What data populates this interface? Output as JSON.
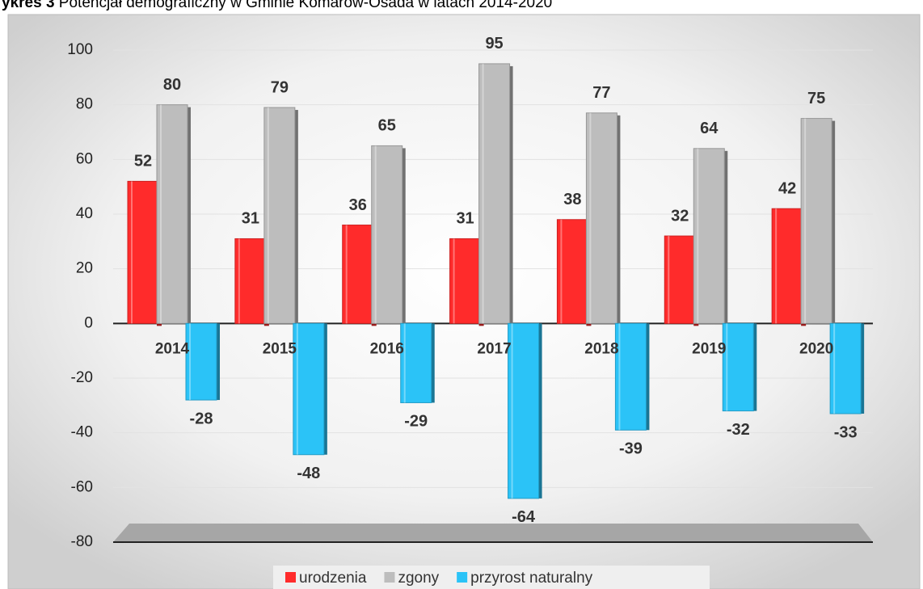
{
  "chart_data": {
    "type": "bar",
    "title_label": "ykres 3",
    "title": "Potencjał demograficzny w Gminie Komarów-Osada w latach 2014-2020",
    "categories": [
      "2014",
      "2015",
      "2016",
      "2017",
      "2018",
      "2019",
      "2020"
    ],
    "series": [
      {
        "name": "urodzenia",
        "color": "#ff2b2b",
        "values": [
          52,
          31,
          36,
          31,
          38,
          32,
          42
        ]
      },
      {
        "name": "zgony",
        "color": "#bdbdbd",
        "values": [
          80,
          79,
          65,
          95,
          77,
          64,
          75
        ]
      },
      {
        "name": "przyrost naturalny",
        "color": "#2bc3f7",
        "values": [
          -28,
          -48,
          -29,
          -64,
          -39,
          -32,
          -33
        ]
      }
    ],
    "ylim": [
      -80,
      100
    ],
    "yticks": [
      -80,
      -60,
      -40,
      -20,
      0,
      20,
      40,
      60,
      80,
      100
    ],
    "grid": true,
    "legend": "bottom"
  }
}
